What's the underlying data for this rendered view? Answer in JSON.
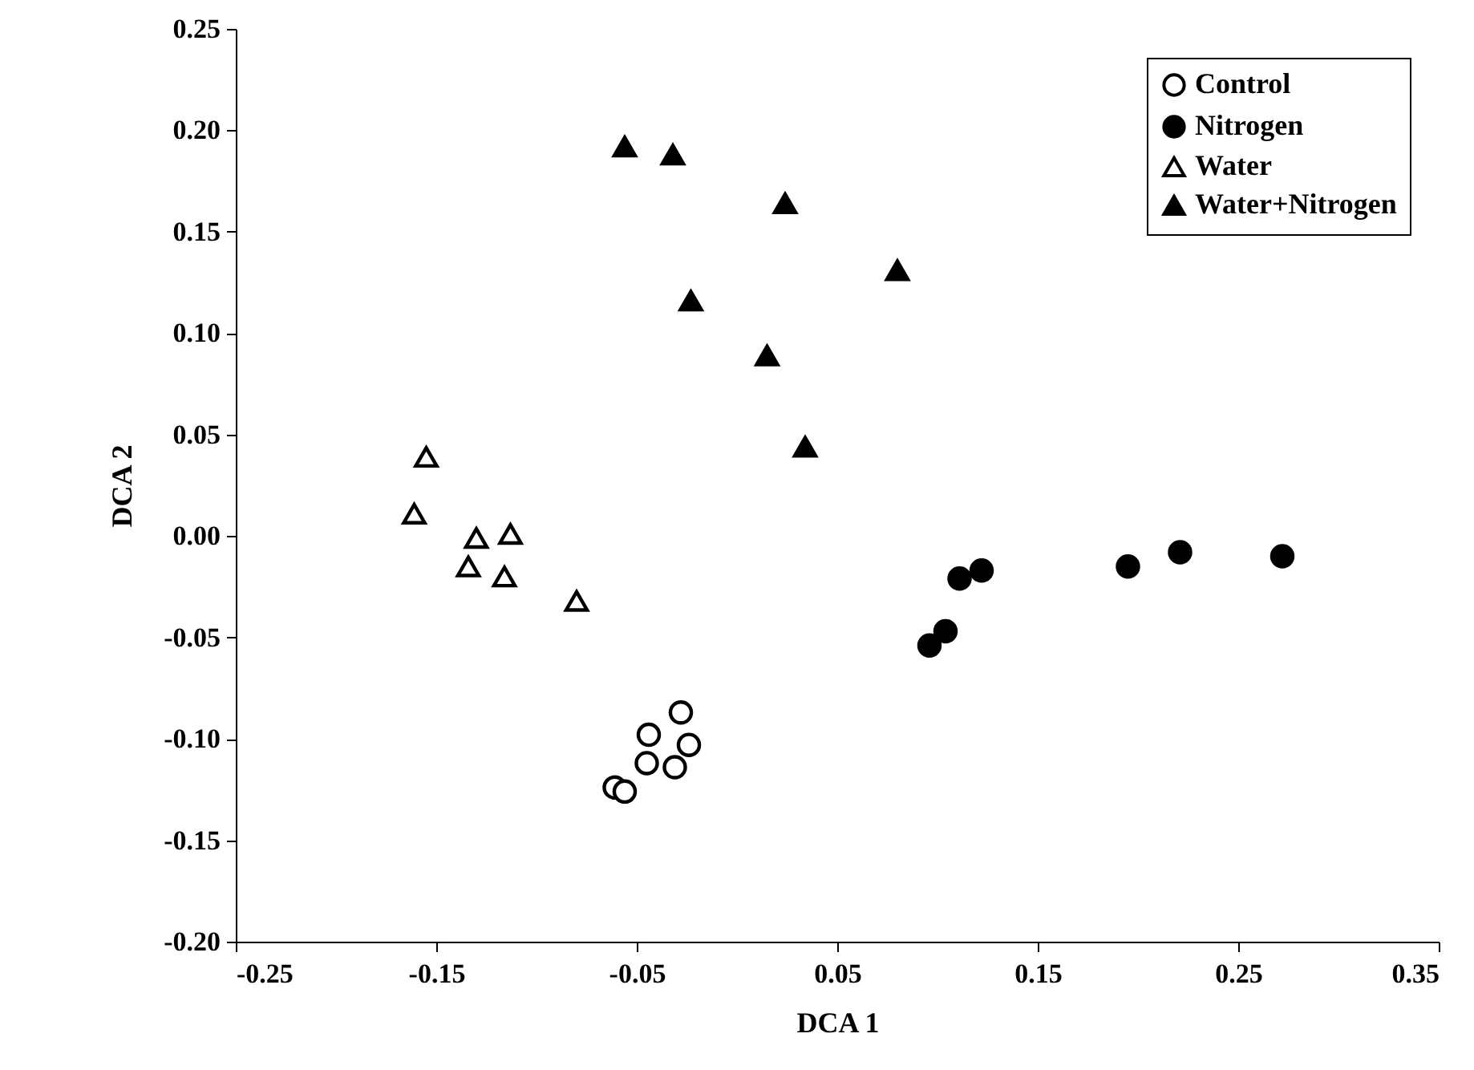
{
  "chart_data": {
    "type": "scatter",
    "xlabel": "DCA 1",
    "ylabel": "DCA 2",
    "xlim": [
      -0.25,
      0.35
    ],
    "xticks": [
      {
        "value": -0.25,
        "label": "-0.25"
      },
      {
        "value": -0.15,
        "label": "-0.15"
      },
      {
        "value": -0.05,
        "label": "-0.05"
      },
      {
        "value": 0.05,
        "label": "0.05"
      },
      {
        "value": 0.15,
        "label": "0.15"
      },
      {
        "value": 0.25,
        "label": "0.25"
      },
      {
        "value": 0.35,
        "label": "0.35"
      }
    ],
    "ylim": [
      -0.2,
      0.25
    ],
    "yticks": [
      {
        "value": -0.2,
        "label": "-0.20"
      },
      {
        "value": -0.15,
        "label": "-0.15"
      },
      {
        "value": -0.1,
        "label": "-0.10"
      },
      {
        "value": -0.05,
        "label": "-0.05"
      },
      {
        "value": 0,
        "label": "0.00"
      },
      {
        "value": 0.05,
        "label": "0.05"
      },
      {
        "value": 0.1,
        "label": "0.10"
      },
      {
        "value": 0.15,
        "label": "0.15"
      },
      {
        "value": 0.2,
        "label": "0.20"
      },
      {
        "value": 0.25,
        "label": "0.25"
      }
    ],
    "grid": false,
    "legend": "top right",
    "series": [
      {
        "name": "Control",
        "color": "#ffffff",
        "marker": "circle",
        "x": [
          -0.028,
          -0.044,
          -0.024,
          -0.045,
          -0.031,
          -0.061,
          -0.056
        ],
        "values": [
          -0.087,
          -0.098,
          -0.103,
          -0.112,
          -0.114,
          -0.124,
          -0.126
        ]
      },
      {
        "name": "Nitrogen",
        "color": "#000000",
        "marker": "circle",
        "x": [
          0.096,
          0.104,
          0.111,
          0.122,
          0.195,
          0.221,
          0.272
        ],
        "values": [
          -0.054,
          -0.047,
          -0.021,
          -0.017,
          -0.015,
          -0.008,
          -0.01
        ]
      },
      {
        "name": "Water",
        "color": "#ffffff",
        "marker": "triangle",
        "x": [
          -0.155,
          -0.161,
          -0.13,
          -0.113,
          -0.134,
          -0.116,
          -0.08
        ],
        "values": [
          0.039,
          0.011,
          -0.001,
          0.001,
          -0.015,
          -0.02,
          -0.032
        ]
      },
      {
        "name": "Water+Nitrogen",
        "color": "#000000",
        "marker": "triangle",
        "x": [
          -0.056,
          -0.032,
          0.024,
          0.08,
          -0.023,
          0.015,
          0.034
        ],
        "values": [
          0.192,
          0.188,
          0.164,
          0.131,
          0.116,
          0.089,
          0.044
        ]
      }
    ]
  }
}
